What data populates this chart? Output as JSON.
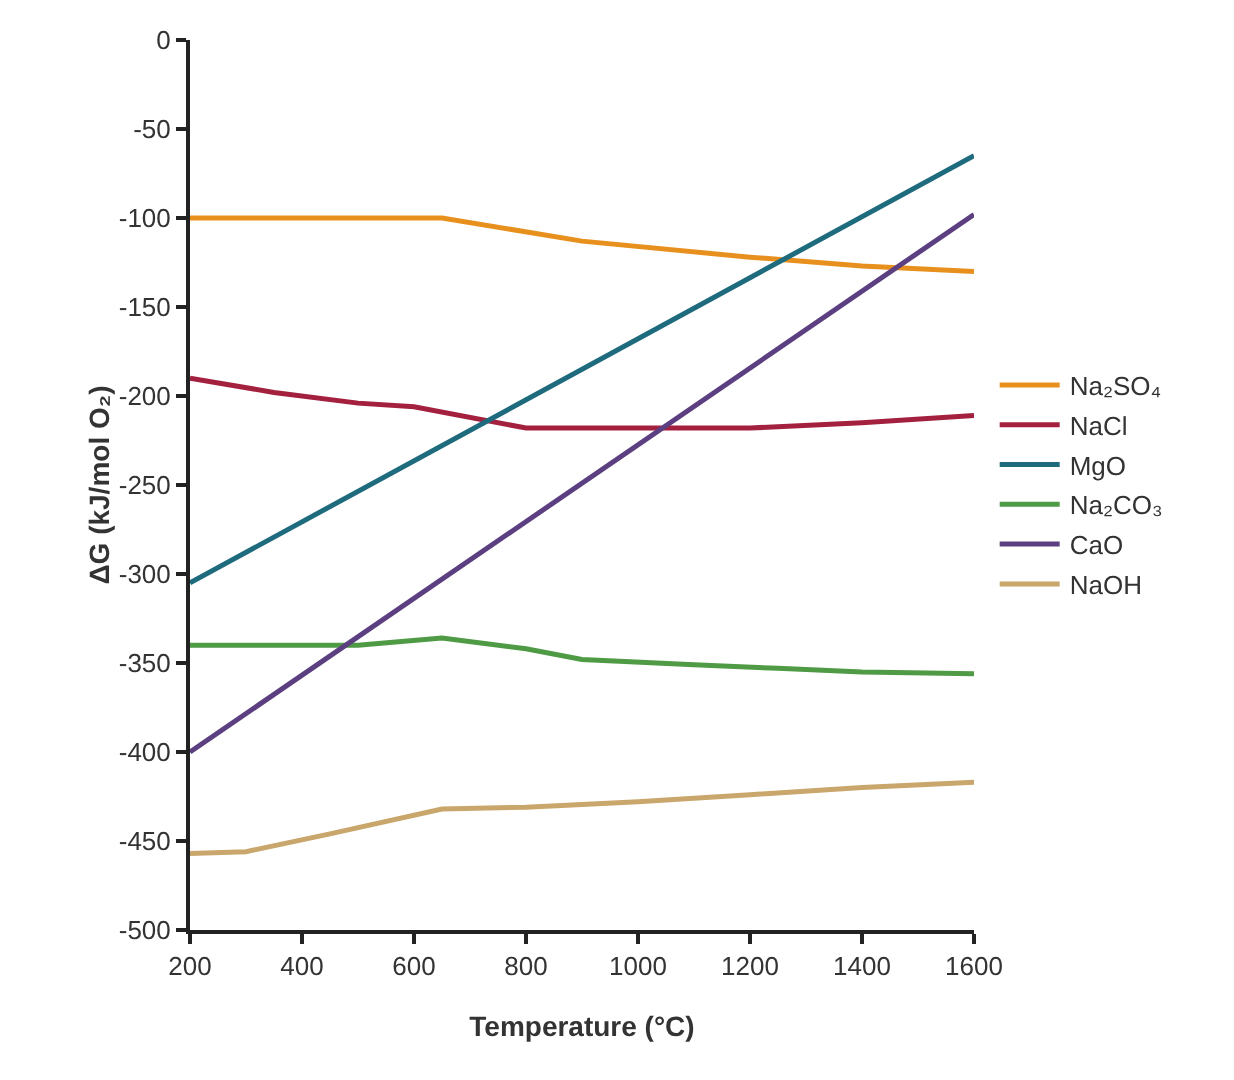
{
  "chart_data": {
    "type": "line",
    "xlabel": "Temperature (°C)",
    "ylabel": "ΔG (kJ/mol O₂)",
    "xlim": [
      200,
      1600
    ],
    "xticks": [
      200,
      400,
      600,
      800,
      1000,
      1200,
      1400,
      1600
    ],
    "ylim": [
      -500,
      0
    ],
    "yticks": [
      -500,
      -450,
      -400,
      -350,
      -300,
      -250,
      -200,
      -150,
      -100,
      -50,
      0
    ],
    "grid": false,
    "legend": "right",
    "marker": "none",
    "line_style": "solid",
    "series": [
      {
        "name": "Na₂SO₄",
        "color": "#e8901e",
        "x": [
          200,
          650,
          900,
          1200,
          1400,
          1600
        ],
        "values": [
          -100,
          -100,
          -113,
          -122,
          -127,
          -130
        ]
      },
      {
        "name": "NaCl",
        "color": "#a3203f",
        "x": [
          200,
          350,
          500,
          600,
          800,
          1000,
          1200,
          1400,
          1600
        ],
        "values": [
          -190,
          -198,
          -204,
          -206,
          -218,
          -218,
          -218,
          -215,
          -211
        ]
      },
      {
        "name": "MgO",
        "color": "#1f6b7e",
        "x": [
          200,
          1600
        ],
        "values": [
          -305,
          -65
        ]
      },
      {
        "name": "Na₂CO₃",
        "color": "#4e9a45",
        "x": [
          200,
          500,
          650,
          800,
          900,
          1100,
          1250,
          1400,
          1600
        ],
        "values": [
          -340,
          -340,
          -336,
          -342,
          -348,
          -351,
          -353,
          -355,
          -356
        ]
      },
      {
        "name": "CaO",
        "color": "#5b3f80",
        "x": [
          200,
          1600
        ],
        "values": [
          -400,
          -98
        ]
      },
      {
        "name": "NaOH",
        "color": "#c9a66b",
        "x": [
          200,
          300,
          450,
          650,
          800,
          1000,
          1200,
          1400,
          1600
        ],
        "values": [
          -457,
          -456,
          -446,
          -432,
          -431,
          -428,
          -424,
          -420,
          -417
        ]
      }
    ]
  }
}
